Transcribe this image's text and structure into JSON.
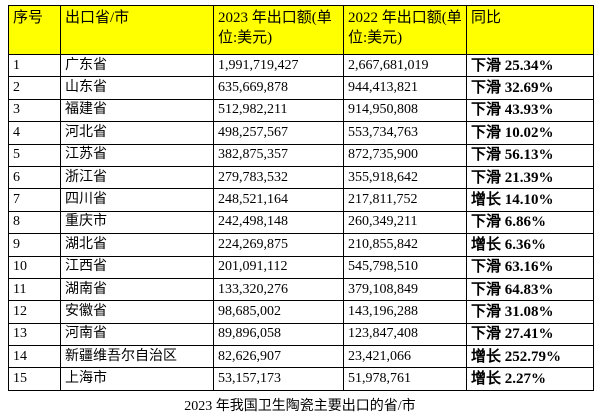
{
  "table": {
    "header": [
      "序号",
      "出口省/市",
      "2023 年出口额(单位:美元)",
      "2022 年出口额(单位:美元)",
      "同比"
    ],
    "rows": [
      [
        "1",
        "广东省",
        "1,991,719,427",
        "2,667,681,019",
        "下滑 25.34%"
      ],
      [
        "2",
        "山东省",
        "635,669,878",
        "944,413,821",
        "下滑 32.69%"
      ],
      [
        "3",
        "福建省",
        "512,982,211",
        "914,950,808",
        "下滑 43.93%"
      ],
      [
        "4",
        "河北省",
        "498,257,567",
        "553,734,763",
        "下滑 10.02%"
      ],
      [
        "5",
        "江苏省",
        "382,875,357",
        "872,735,900",
        "下滑 56.13%"
      ],
      [
        "6",
        "浙江省",
        "279,783,532",
        "355,918,642",
        "下滑 21.39%"
      ],
      [
        "7",
        "四川省",
        "248,521,164",
        "217,811,752",
        "增长 14.10%"
      ],
      [
        "8",
        "重庆市",
        "242,498,148",
        "260,349,211",
        "下滑 6.86%"
      ],
      [
        "9",
        "湖北省",
        "224,269,875",
        "210,855,842",
        "增长 6.36%"
      ],
      [
        "10",
        "江西省",
        "201,091,112",
        "545,798,510",
        "下滑 63.16%"
      ],
      [
        "11",
        "湖南省",
        "133,320,276",
        "379,108,849",
        "下滑 64.83%"
      ],
      [
        "12",
        "安徽省",
        "98,685,002",
        "143,196,288",
        "下滑 31.08%"
      ],
      [
        "13",
        "河南省",
        "89,896,058",
        "123,847,408",
        "下滑 27.41%"
      ],
      [
        "14",
        "新疆维吾尔自治区",
        "82,626,907",
        "23,421,066",
        "增长 252.79%"
      ],
      [
        "15",
        "上海市",
        "53,157,173",
        "51,978,761",
        "增长 2.27%"
      ]
    ]
  },
  "caption": "2023 年我国卫生陶瓷主要出口的省/市"
}
